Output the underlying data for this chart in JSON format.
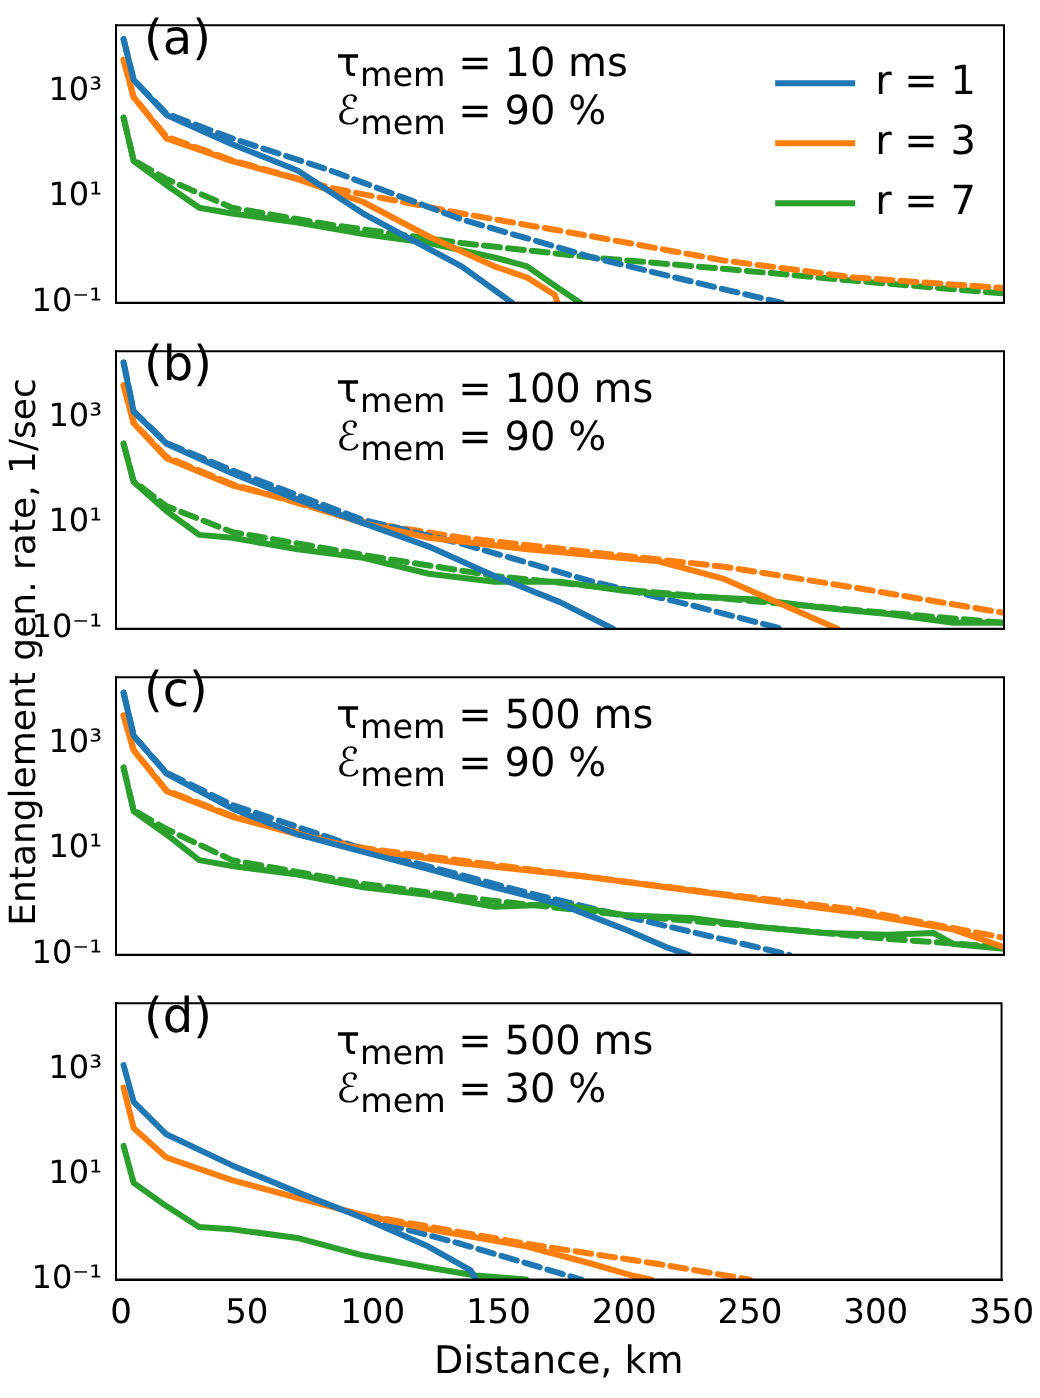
{
  "chart_data": [
    {
      "type": "line",
      "annotations": [
        "(a)",
        "τ$_{mem}$ = 10 ms",
        "ℰ$_{mem}$ = 90 %"
      ],
      "xlim": [
        -2,
        350
      ],
      "xticks": [
        0,
        50,
        100,
        150,
        200,
        250,
        300,
        350
      ],
      "ylim": [
        0.1,
        18000
      ],
      "yticks": [
        {
          "value": 0.1,
          "label": "10⁻¹"
        },
        {
          "value": 10,
          "label": "10¹"
        },
        {
          "value": 1000,
          "label": "10³"
        }
      ],
      "log": "y",
      "grid": false,
      "legend": "top right",
      "marker": "none",
      "tick_labels": "y",
      "series": [
        {
          "name": "r = 1",
          "color": "#1f77b4",
          "line_style": "solid",
          "x": [
            1,
            5,
            18,
            44,
            70,
            96,
            122,
            135,
            155
          ],
          "values": [
            9800,
            1660,
            360,
            100,
            32,
            4.9,
            1.05,
            0.49,
            0.1
          ]
        },
        {
          "name": "r = 3",
          "color": "#ff7f0e",
          "line_style": "solid",
          "x": [
            1,
            5,
            18,
            44,
            70,
            96,
            122,
            148,
            161,
            172,
            173
          ],
          "values": [
            4000,
            780,
            130,
            48,
            22,
            8.1,
            1.8,
            0.49,
            0.3,
            0.14,
            0.1
          ]
        },
        {
          "name": "r = 7",
          "color": "#2ca02c",
          "line_style": "solid",
          "x": [
            1,
            5,
            18,
            31,
            44,
            70,
            96,
            122,
            148,
            161,
            174,
            182
          ],
          "values": [
            320,
            48,
            17,
            6.3,
            4.9,
            3.3,
            2.0,
            1.35,
            0.72,
            0.49,
            0.18,
            0.1
          ]
        },
        {
          "color": "#1f77b4",
          "line_style": "dashed",
          "x": [
            1,
            5,
            18,
            44,
            83,
            135,
            187,
            239,
            262
          ],
          "values": [
            9800,
            1660,
            380,
            130,
            32,
            3.8,
            0.72,
            0.18,
            0.1
          ]
        },
        {
          "color": "#ff7f0e",
          "line_style": "dashed",
          "x": [
            1,
            5,
            18,
            44,
            83,
            135,
            187,
            239,
            291,
            350
          ],
          "values": [
            4000,
            780,
            140,
            50,
            15,
            4.9,
            1.8,
            0.63,
            0.3,
            0.19
          ]
        },
        {
          "color": "#2ca02c",
          "line_style": "dashed",
          "x": [
            1,
            5,
            18,
            44,
            83,
            135,
            187,
            239,
            291,
            350
          ],
          "values": [
            320,
            50,
            22,
            6.3,
            3.0,
            1.35,
            0.72,
            0.44,
            0.26,
            0.15
          ]
        }
      ]
    },
    {
      "type": "line",
      "ylabel": "Entanglement gen. rate, 1/sec",
      "annotations": [
        "(b)",
        "τ$_{mem}$ = 100 ms",
        "ℰ$_{mem}$ = 90 %"
      ],
      "xlim": [
        -2,
        350
      ],
      "xticks": [
        0,
        50,
        100,
        150,
        200,
        250,
        300,
        350
      ],
      "ylim": [
        0.1,
        18000
      ],
      "yticks": [
        {
          "value": 0.1,
          "label": "10⁻¹"
        },
        {
          "value": 10,
          "label": "10¹"
        },
        {
          "value": 1000,
          "label": "10³"
        }
      ],
      "log": "y",
      "grid": false,
      "marker": "none",
      "tick_labels": "y",
      "series": [
        {
          "color": "#1f77b4",
          "line_style": "solid",
          "x": [
            1,
            5,
            18,
            44,
            70,
            96,
            122,
            148,
            174,
            195
          ],
          "values": [
            11000,
            1300,
            320,
            88,
            28,
            10,
            3.6,
            1,
            0.32,
            0.1
          ]
        },
        {
          "color": "#ff7f0e",
          "line_style": "solid",
          "x": [
            1,
            5,
            18,
            44,
            70,
            96,
            122,
            161,
            213,
            239,
            265,
            284
          ],
          "values": [
            4100,
            780,
            170,
            52,
            25,
            10,
            5.3,
            3.2,
            1.9,
            0.88,
            0.25,
            0.1
          ]
        },
        {
          "color": "#2ca02c",
          "line_style": "solid",
          "x": [
            1,
            5,
            18,
            31,
            44,
            70,
            96,
            122,
            148,
            174,
            200,
            226,
            252,
            278,
            304,
            330,
            350
          ],
          "values": [
            320,
            60,
            17,
            6,
            5.3,
            3.2,
            2.2,
            1.1,
            0.78,
            0.78,
            0.52,
            0.41,
            0.36,
            0.25,
            0.19,
            0.13,
            0.13
          ]
        },
        {
          "color": "#1f77b4",
          "line_style": "dashed",
          "x": [
            1,
            5,
            18,
            44,
            96,
            135,
            187,
            226,
            262
          ],
          "values": [
            11000,
            1300,
            330,
            100,
            11.5,
            4.1,
            0.78,
            0.28,
            0.1
          ]
        },
        {
          "color": "#ff7f0e",
          "line_style": "dashed",
          "x": [
            1,
            5,
            18,
            44,
            96,
            135,
            187,
            239,
            291,
            350
          ],
          "values": [
            4100,
            800,
            180,
            55,
            10.5,
            5.3,
            2.8,
            1.5,
            0.6,
            0.2
          ]
        },
        {
          "color": "#2ca02c",
          "line_style": "dashed",
          "x": [
            1,
            5,
            18,
            44,
            96,
            148,
            200,
            252,
            304,
            350
          ],
          "values": [
            320,
            62,
            21,
            6.8,
            2.5,
            1,
            0.55,
            0.33,
            0.2,
            0.13
          ]
        }
      ]
    },
    {
      "type": "line",
      "annotations": [
        "(c)",
        "τ$_{mem}$ = 500 ms",
        "ℰ$_{mem}$ = 90 %"
      ],
      "xlim": [
        -2,
        350
      ],
      "xticks": [
        0,
        50,
        100,
        150,
        200,
        250,
        300,
        350
      ],
      "ylim": [
        0.1,
        18000
      ],
      "yticks": [
        {
          "value": 0.1,
          "label": "10⁻¹"
        },
        {
          "value": 10,
          "label": "10¹"
        },
        {
          "value": 1000,
          "label": "10³"
        }
      ],
      "log": "y",
      "grid": false,
      "marker": "none",
      "tick_labels": "y",
      "series": [
        {
          "color": "#1f77b4",
          "line_style": "solid",
          "x": [
            1,
            5,
            18,
            44,
            70,
            96,
            122,
            148,
            174,
            200,
            216,
            225
          ],
          "values": [
            9200,
            1400,
            270,
            59,
            19,
            8.9,
            4.2,
            1.9,
            0.91,
            0.3,
            0.14,
            0.1
          ]
        },
        {
          "color": "#ff7f0e",
          "line_style": "solid",
          "x": [
            1,
            5,
            18,
            44,
            70,
            96,
            135,
            187,
            239,
            291,
            330,
            350
          ],
          "values": [
            3400,
            740,
            125,
            41,
            19,
            10,
            5.4,
            2.9,
            1.35,
            0.63,
            0.3,
            0.14
          ]
        },
        {
          "color": "#2ca02c",
          "line_style": "solid",
          "x": [
            1,
            5,
            18,
            31,
            44,
            70,
            96,
            122,
            148,
            174,
            200,
            226,
            252,
            278,
            304,
            322,
            330,
            350
          ],
          "values": [
            350,
            52,
            19,
            6.2,
            4.8,
            3.3,
            1.9,
            1.35,
            0.81,
            0.91,
            0.56,
            0.5,
            0.34,
            0.26,
            0.24,
            0.26,
            0.16,
            0.13
          ]
        },
        {
          "color": "#1f77b4",
          "line_style": "dashed",
          "x": [
            1,
            5,
            18,
            44,
            96,
            161,
            213,
            265
          ],
          "values": [
            9200,
            1400,
            280,
            69,
            10,
            1.5,
            0.38,
            0.1
          ]
        },
        {
          "color": "#ff7f0e",
          "line_style": "dashed",
          "x": [
            1,
            5,
            18,
            44,
            96,
            161,
            239,
            291,
            350
          ],
          "values": [
            3400,
            760,
            130,
            43,
            10.5,
            4.2,
            1.4,
            0.72,
            0.21
          ]
        },
        {
          "color": "#2ca02c",
          "line_style": "dashed",
          "x": [
            1,
            5,
            18,
            44,
            96,
            148,
            200,
            252,
            304,
            350
          ],
          "values": [
            350,
            55,
            24,
            6.2,
            2.2,
            1.05,
            0.56,
            0.34,
            0.2,
            0.14
          ]
        }
      ]
    },
    {
      "type": "line",
      "xlabel": "Distance, km",
      "annotations": [
        "(d)",
        "τ$_{mem}$ = 500 ms",
        "ℰ$_{mem}$ = 30 %"
      ],
      "xlim": [
        -2,
        350
      ],
      "xticks": [
        0,
        50,
        100,
        150,
        200,
        250,
        300,
        350
      ],
      "ylim": [
        0.1,
        18000
      ],
      "yticks": [
        {
          "value": 0.1,
          "label": "10⁻¹"
        },
        {
          "value": 10,
          "label": "10¹"
        },
        {
          "value": 1000,
          "label": "10³"
        }
      ],
      "log": "y",
      "grid": false,
      "marker": "none",
      "series": [
        {
          "color": "#1f77b4",
          "line_style": "solid",
          "x": [
            1,
            5,
            18,
            44,
            70,
            96,
            122,
            139,
            141
          ],
          "values": [
            1200,
            240,
            58,
            15,
            4.6,
            1.5,
            0.43,
            0.15,
            0.1
          ]
        },
        {
          "color": "#ff7f0e",
          "line_style": "solid",
          "x": [
            1,
            5,
            18,
            44,
            70,
            96,
            122,
            161,
            187,
            203,
            211
          ],
          "values": [
            450,
            76,
            21,
            7.8,
            3.6,
            1.7,
            0.91,
            0.43,
            0.2,
            0.12,
            0.1
          ]
        },
        {
          "color": "#2ca02c",
          "line_style": "solid",
          "x": [
            1,
            5,
            18,
            31,
            44,
            70,
            96,
            122,
            141,
            161
          ],
          "values": [
            35,
            6.9,
            2.5,
            1.0,
            0.91,
            0.62,
            0.29,
            0.17,
            0.12,
            0.1
          ]
        },
        {
          "color": "#1f77b4",
          "line_style": "dashed",
          "x": [
            96,
            135,
            183
          ],
          "values": [
            1.5,
            0.48,
            0.1
          ]
        },
        {
          "color": "#ff7f0e",
          "line_style": "dashed",
          "x": [
            96,
            161,
            213,
            250
          ],
          "values": [
            1.7,
            0.48,
            0.2,
            0.1
          ]
        }
      ]
    }
  ]
}
